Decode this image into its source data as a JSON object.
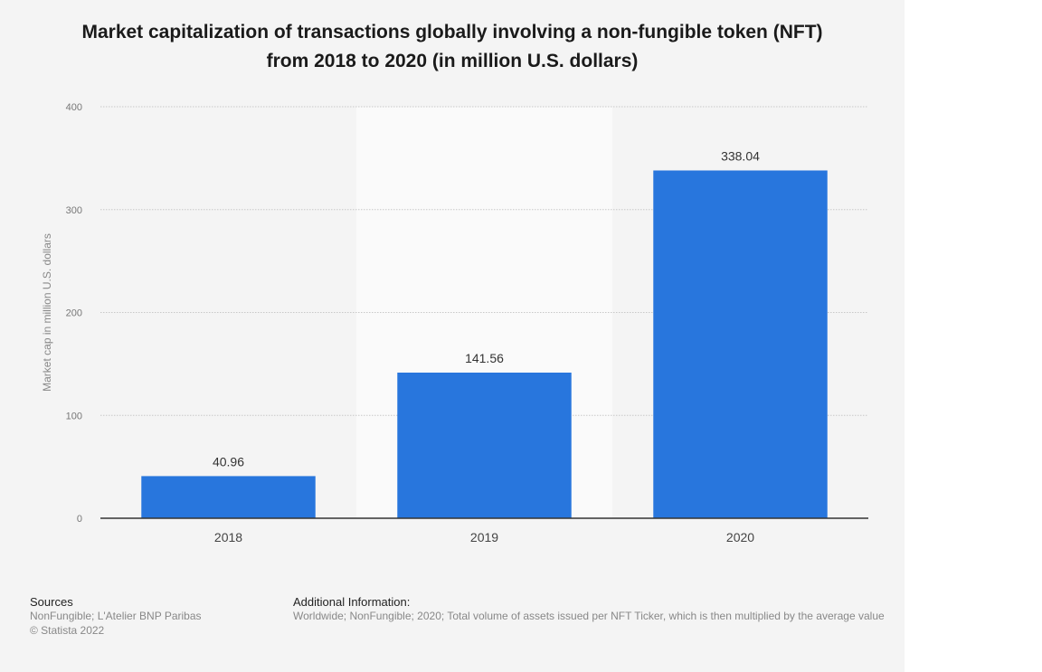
{
  "chart_data": {
    "type": "bar",
    "title_lines": [
      "Market capitalization of transactions globally involving a non-fungible token (NFT)",
      "from 2018 to 2020 (in million U.S. dollars)"
    ],
    "categories": [
      "2018",
      "2019",
      "2020"
    ],
    "values": [
      40.96,
      141.56,
      338.04
    ],
    "value_labels": [
      "40.96",
      "141.56",
      "338.04"
    ],
    "xlabel": "",
    "ylabel": "Market cap in million U.S. dollars",
    "ylim": [
      0,
      400
    ],
    "yticks": [
      0,
      100,
      200,
      300,
      400
    ],
    "grid": true,
    "highlighted_category": "2019",
    "bar_color": "#2876dd"
  },
  "footer": {
    "sources_heading": "Sources",
    "sources_text": "NonFungible; L'Atelier BNP Paribas",
    "copyright": "© Statista 2022",
    "additional_heading": "Additional Information:",
    "additional_text": "Worldwide; NonFungible; 2020; Total volume of assets issued per NFT Ticker, which is then multiplied by the average value"
  },
  "colors": {
    "background": "#f4f4f4",
    "bar": "#2876dd",
    "highlight_band": "#fafafa",
    "gridline": "#c8c8c8",
    "axis": "#333333"
  }
}
